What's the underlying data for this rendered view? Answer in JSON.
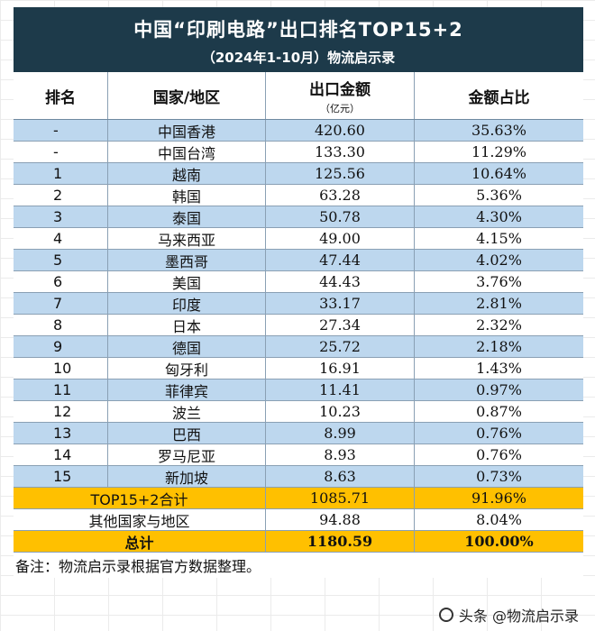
{
  "title": "中国“印刷电路”出口排名TOP15+2",
  "subtitle": "（2024年1-10月）物流启示录",
  "headers": {
    "rank": "排名",
    "region": "国家/地区",
    "amount": "出口金额",
    "amount_unit": "（亿元）",
    "share": "金额占比"
  },
  "rows": [
    {
      "rank": "-",
      "region": "中国香港",
      "amount": "420.60",
      "share": "35.63%"
    },
    {
      "rank": "-",
      "region": "中国台湾",
      "amount": "133.30",
      "share": "11.29%"
    },
    {
      "rank": "1",
      "region": "越南",
      "amount": "125.56",
      "share": "10.64%"
    },
    {
      "rank": "2",
      "region": "韩国",
      "amount": "63.28",
      "share": "5.36%"
    },
    {
      "rank": "3",
      "region": "泰国",
      "amount": "50.78",
      "share": "4.30%"
    },
    {
      "rank": "4",
      "region": "马来西亚",
      "amount": "49.00",
      "share": "4.15%"
    },
    {
      "rank": "5",
      "region": "墨西哥",
      "amount": "47.44",
      "share": "4.02%"
    },
    {
      "rank": "6",
      "region": "美国",
      "amount": "44.43",
      "share": "3.76%"
    },
    {
      "rank": "7",
      "region": "印度",
      "amount": "33.17",
      "share": "2.81%"
    },
    {
      "rank": "8",
      "region": "日本",
      "amount": "27.34",
      "share": "2.32%"
    },
    {
      "rank": "9",
      "region": "德国",
      "amount": "25.72",
      "share": "2.18%"
    },
    {
      "rank": "10",
      "region": "匈牙利",
      "amount": "16.91",
      "share": "1.43%"
    },
    {
      "rank": "11",
      "region": "菲律宾",
      "amount": "11.41",
      "share": "0.97%"
    },
    {
      "rank": "12",
      "region": "波兰",
      "amount": "10.23",
      "share": "0.87%"
    },
    {
      "rank": "13",
      "region": "巴西",
      "amount": "8.99",
      "share": "0.76%"
    },
    {
      "rank": "14",
      "region": "罗马尼亚",
      "amount": "8.93",
      "share": "0.76%"
    },
    {
      "rank": "15",
      "region": "新加坡",
      "amount": "8.63",
      "share": "0.73%"
    }
  ],
  "subtotal": {
    "label": "TOP15+2合计",
    "amount": "1085.71",
    "share": "91.96%"
  },
  "others": {
    "label": "其他国家与地区",
    "amount": "94.88",
    "share": "8.04%"
  },
  "total": {
    "label": "总计",
    "amount": "1180.59",
    "share": "100.00%"
  },
  "note": "备注：物流启示录根据官方数据整理。",
  "watermark": "头条 @物流启示录",
  "colors": {
    "title_bg": "#1d3a4a",
    "row_blue": "#bdd7ee",
    "row_orange": "#ffc000"
  }
}
